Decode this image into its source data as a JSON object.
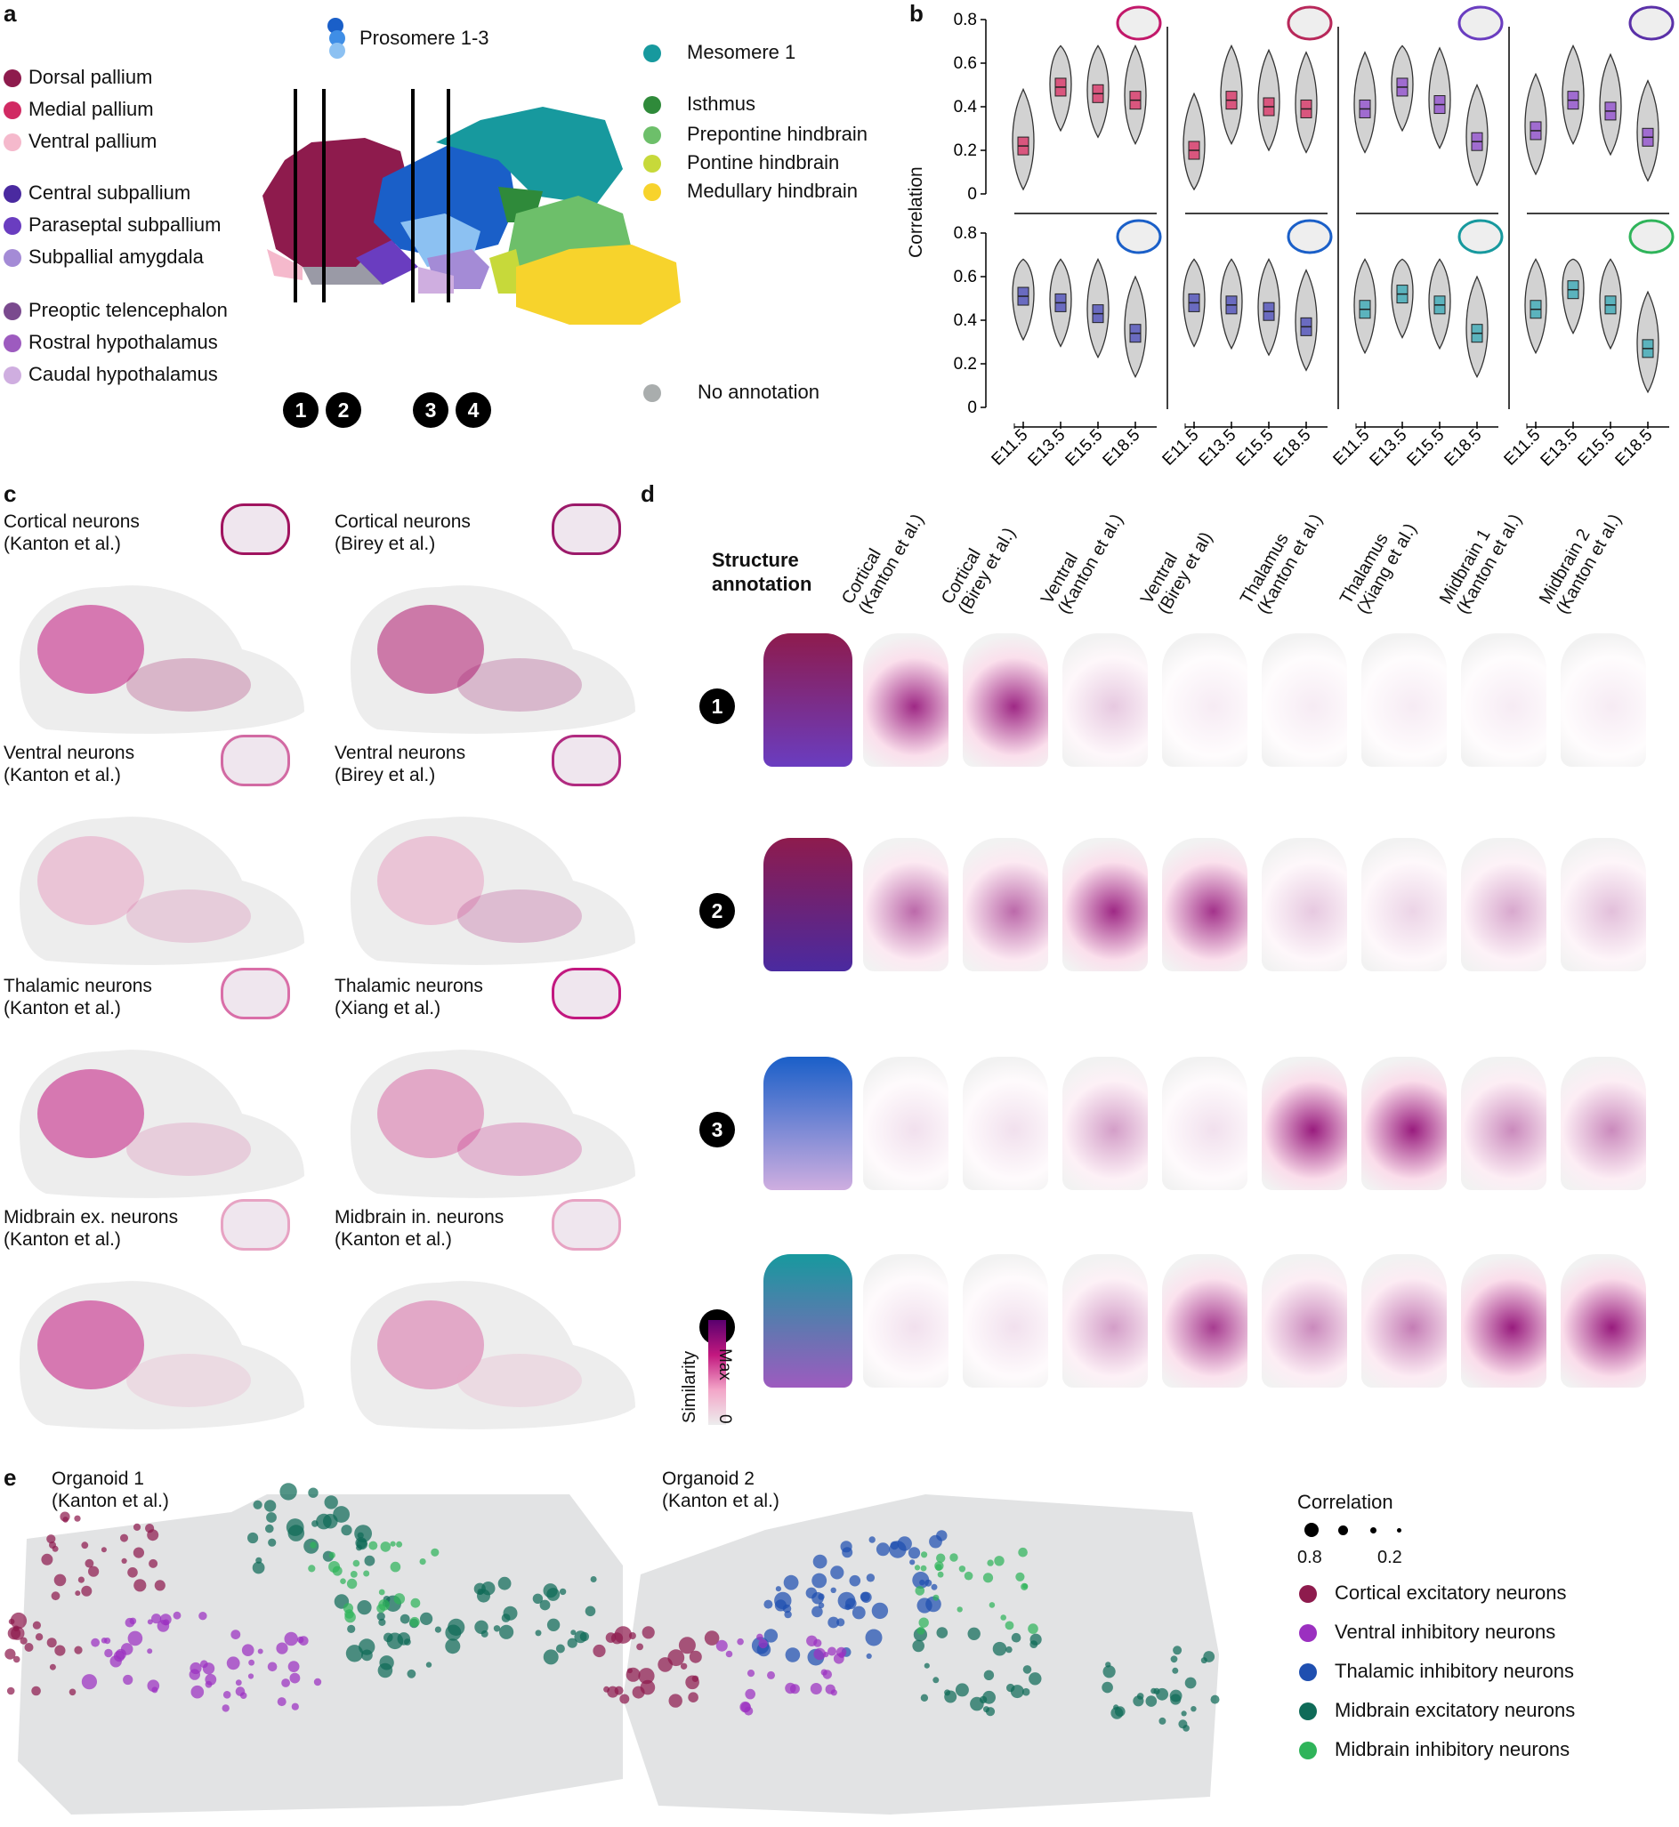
{
  "panel_labels": {
    "a": "a",
    "b": "b",
    "c": "c",
    "d": "d",
    "e": "e"
  },
  "colors": {
    "dorsal_pallium": "#8e1b4d",
    "medial_pallium": "#d12a63",
    "ventral_pallium": "#f5b9cc",
    "central_subpallium": "#4a2aa0",
    "paraseptal_subpallium": "#6a3dc0",
    "subpallial_amygdala": "#a48bd6",
    "preoptic": "#7a4a8e",
    "rostral_hypo": "#9d5bbf",
    "caudal_hypo": "#cfaee0",
    "prosomere_a": "#1a5fc8",
    "prosomere_b": "#3f8ee6",
    "prosomere_c": "#8cc1f2",
    "mesomere": "#17999e",
    "isthmus": "#2f8a3a",
    "prepontine": "#6dbf6a",
    "pontine": "#c7d93a",
    "medullary": "#f7d32c",
    "no_annotation": "#a9adad",
    "accent_magenta": "#c2187f"
  },
  "panel_a": {
    "legend_left": [
      {
        "label": "Dorsal pallium",
        "color_key": "dorsal_pallium"
      },
      {
        "label": "Medial pallium",
        "color_key": "medial_pallium"
      },
      {
        "label": "Ventral pallium",
        "color_key": "ventral_pallium"
      },
      {
        "label": "Central subpallium",
        "color_key": "central_subpallium"
      },
      {
        "label": "Paraseptal subpallium",
        "color_key": "paraseptal_subpallium"
      },
      {
        "label": "Subpallial amygdala",
        "color_key": "subpallial_amygdala"
      },
      {
        "label": "Preoptic telencephalon",
        "color_key": "preoptic"
      },
      {
        "label": "Rostral hypothalamus",
        "color_key": "rostral_hypo"
      },
      {
        "label": "Caudal hypothalamus",
        "color_key": "caudal_hypo"
      }
    ],
    "prosomere_label": "Prosomere 1-3",
    "legend_right": [
      {
        "label": "Mesomere 1",
        "color_key": "mesomere"
      },
      {
        "label": "Isthmus",
        "color_key": "isthmus"
      },
      {
        "label": "Prepontine hindbrain",
        "color_key": "prepontine"
      },
      {
        "label": "Pontine hindbrain",
        "color_key": "pontine"
      },
      {
        "label": "Medullary hindbrain",
        "color_key": "medullary"
      }
    ],
    "no_annotation": "No annotation",
    "section_numbers": [
      "1",
      "2",
      "3",
      "4"
    ]
  },
  "panel_b": {
    "ylabel": "Correlation",
    "yticks": [
      "0",
      "0.2",
      "0.4",
      "0.6",
      "0.8"
    ],
    "xticks": [
      "E11.5",
      "E13.5",
      "E15.5",
      "E18.5"
    ]
  },
  "chart_data": {
    "type": "violin",
    "ylabel": "Correlation",
    "ylim": [
      0,
      0.8
    ],
    "categories": [
      "E11.5",
      "E13.5",
      "E15.5",
      "E18.5"
    ],
    "series": [
      {
        "row": 1,
        "col": 1,
        "color": "#d9567e",
        "values": [
          0.22,
          0.49,
          0.46,
          0.43
        ]
      },
      {
        "row": 1,
        "col": 2,
        "color": "#d9567e",
        "values": [
          0.2,
          0.43,
          0.4,
          0.39
        ]
      },
      {
        "row": 1,
        "col": 3,
        "color": "#a06cd0",
        "values": [
          0.39,
          0.49,
          0.41,
          0.24
        ]
      },
      {
        "row": 1,
        "col": 4,
        "color": "#a06cd0",
        "values": [
          0.29,
          0.43,
          0.38,
          0.26
        ]
      },
      {
        "row": 2,
        "col": 1,
        "color": "#6a6bc0",
        "values": [
          0.51,
          0.48,
          0.43,
          0.34
        ]
      },
      {
        "row": 2,
        "col": 2,
        "color": "#6a6bc0",
        "values": [
          0.48,
          0.47,
          0.44,
          0.37
        ]
      },
      {
        "row": 2,
        "col": 3,
        "color": "#5bb3bd",
        "values": [
          0.45,
          0.52,
          0.47,
          0.34
        ]
      },
      {
        "row": 2,
        "col": 4,
        "color": "#5bb3bd",
        "values": [
          0.45,
          0.54,
          0.47,
          0.27
        ]
      }
    ]
  },
  "panel_c": {
    "items": [
      {
        "line1": "Cortical neurons",
        "line2": "(Kanton et al.)"
      },
      {
        "line1": "Cortical neurons",
        "line2": "(Birey et al.)"
      },
      {
        "line1": "Ventral neurons",
        "line2": "(Kanton et al.)"
      },
      {
        "line1": "Ventral neurons",
        "line2": "(Birey et al.)"
      },
      {
        "line1": "Thalamic neurons",
        "line2": "(Kanton et al.)"
      },
      {
        "line1": "Thalamic neurons",
        "line2": "(Xiang et al.)"
      },
      {
        "line1": "Midbrain ex. neurons",
        "line2": "(Kanton et al.)"
      },
      {
        "line1": "Midbrain in. neurons",
        "line2": "(Kanton et al.)"
      }
    ]
  },
  "panel_d": {
    "structure_title_1": "Structure",
    "structure_title_2": "annotation",
    "columns": [
      {
        "line1": "Cortical",
        "line2": "(Kanton et al.)"
      },
      {
        "line1": "Cortical",
        "line2": "(Birey et al.)"
      },
      {
        "line1": "Ventral",
        "line2": "(Kanton et al.)"
      },
      {
        "line1": "Ventral",
        "line2": "(Birey et al)"
      },
      {
        "line1": "Thalamus",
        "line2": "(Kanton et al.)"
      },
      {
        "line1": "Thalamus",
        "line2": "(Xiang et al.)"
      },
      {
        "line1": "Midbrain 1",
        "line2": "(Kanton et al.)"
      },
      {
        "line1": "Midbrain 2",
        "line2": "(Kanton et al.)"
      }
    ],
    "rows": [
      "1",
      "2",
      "3",
      "4"
    ],
    "colorbar": {
      "title": "Similarity",
      "max": "Max",
      "min": "0"
    }
  },
  "panel_e": {
    "organoid1_line1": "Organoid 1",
    "organoid1_line2": "(Kanton et al.)",
    "organoid2_line1": "Organoid 2",
    "organoid2_line2": "(Kanton et al.)",
    "size_title": "Correlation",
    "size_high": "0.8",
    "size_low": "0.2",
    "legend": [
      {
        "label": "Cortical excitatory neurons",
        "color": "#8e1b4d"
      },
      {
        "label": "Ventral inhibitory neurons",
        "color": "#9b30c0"
      },
      {
        "label": "Thalamic inhibitory neurons",
        "color": "#1f4fb0"
      },
      {
        "label": "Midbrain excitatory neurons",
        "color": "#0f6b58"
      },
      {
        "label": "Midbrain inhibitory neurons",
        "color": "#2fb45a"
      }
    ]
  }
}
